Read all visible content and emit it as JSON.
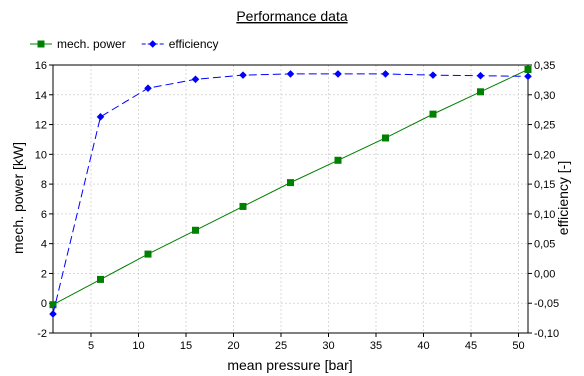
{
  "chart_data": {
    "type": "line",
    "title": "Performance data",
    "xlabel": "mean pressure [bar]",
    "ylabel": "mech. power [kW]",
    "y2label": "efficiency [-]",
    "xlim": [
      1,
      51
    ],
    "ylim": [
      -2,
      16
    ],
    "y2lim": [
      -0.1,
      0.35
    ],
    "xticks": [
      "5",
      "10",
      "15",
      "20",
      "25",
      "30",
      "35",
      "40",
      "45",
      "50"
    ],
    "yticks": [
      "-2",
      "0",
      "2",
      "4",
      "6",
      "8",
      "10",
      "12",
      "14",
      "16"
    ],
    "y2ticks": [
      "-0,10",
      "-0,05",
      "0,00",
      "0,05",
      "0,10",
      "0,15",
      "0,20",
      "0,25",
      "0,30",
      "0,35"
    ],
    "legend_position": "top-left",
    "grid": true,
    "x": [
      1,
      6,
      11,
      16,
      21,
      26,
      31,
      36,
      41,
      46,
      51
    ],
    "series": [
      {
        "name": "mech. power",
        "axis": "left",
        "color": "#008000",
        "marker": "square",
        "line": "solid",
        "values": [
          -0.1,
          1.6,
          3.3,
          4.9,
          6.5,
          8.1,
          9.6,
          11.1,
          12.7,
          14.2,
          15.7
        ]
      },
      {
        "name": "efficiency",
        "axis": "right",
        "color": "#0000ff",
        "marker": "diamond",
        "line": "dashed",
        "values": [
          -0.068,
          0.263,
          0.311,
          0.326,
          0.333,
          0.335,
          0.335,
          0.335,
          0.333,
          0.332,
          0.331
        ]
      }
    ]
  }
}
